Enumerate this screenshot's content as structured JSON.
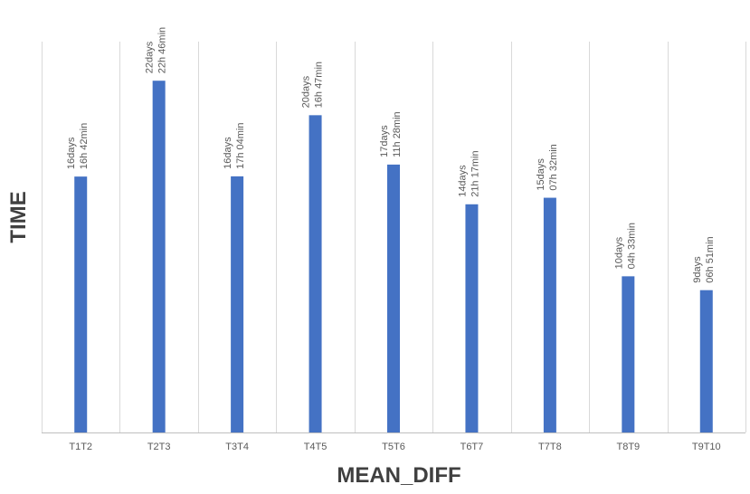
{
  "chart_data": {
    "type": "bar",
    "title": "",
    "xlabel": "MEAN_DIFF",
    "ylabel": "TIME",
    "categories": [
      "T1T2",
      "T2T3",
      "T3T4",
      "T4T5",
      "T5T6",
      "T6T7",
      "T7T8",
      "T8T9",
      "T9T10"
    ],
    "values": [
      16.696,
      22.949,
      16.711,
      20.699,
      17.478,
      14.887,
      15.314,
      10.19,
      9.285
    ],
    "value_unit": "days",
    "data_labels": [
      [
        "16days",
        "16h 42min"
      ],
      [
        "22days",
        "22h 46min"
      ],
      [
        "16days",
        "17h 04min"
      ],
      [
        "20days",
        "16h 47min"
      ],
      [
        "17days",
        "11h 28min"
      ],
      [
        "14days",
        "21h 17min"
      ],
      [
        "15days",
        "07h 32min"
      ],
      [
        "10days",
        "04h 33min"
      ],
      [
        "9days",
        "06h 51min"
      ]
    ],
    "ylim": [
      0,
      25.5
    ],
    "grid": "vertical",
    "legend": "none",
    "bar_color": "#4472c4"
  }
}
